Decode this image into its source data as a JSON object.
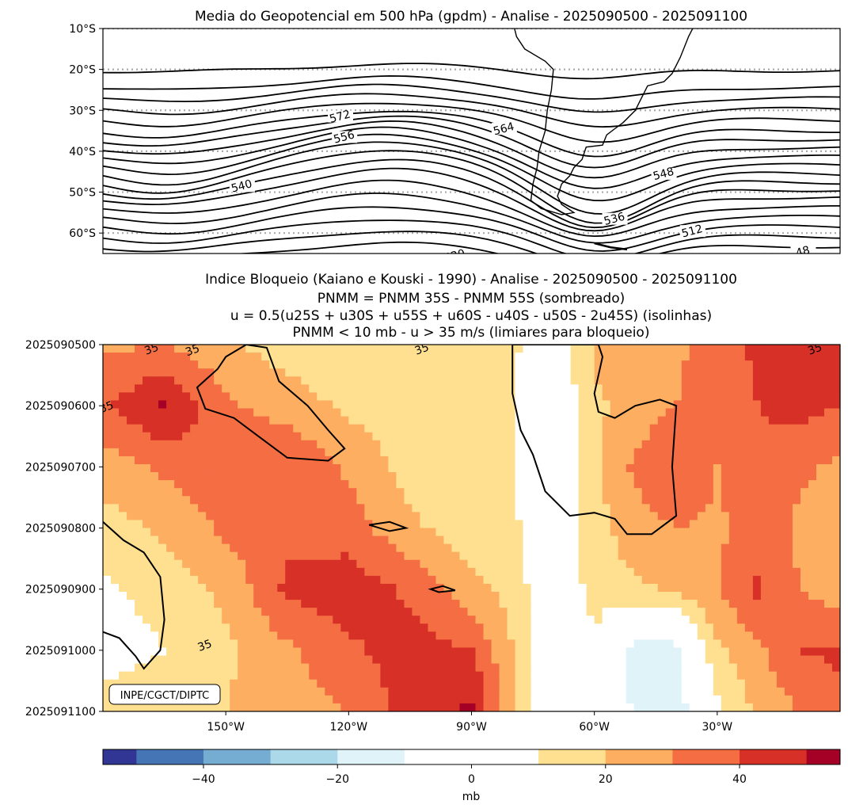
{
  "chart_data": [
    {
      "type": "contour",
      "title": "Media do Geopotencial em 500 hPa (gpdm) - Analise - 2025090500 - 2025091100",
      "xlim": [
        -180,
        0
      ],
      "ylim": [
        -65,
        -10
      ],
      "y_ticks": [
        -10,
        -20,
        -30,
        -40,
        -50,
        -60
      ],
      "y_tick_labels": [
        "10°S",
        "20°S",
        "30°S",
        "40°S",
        "50°S",
        "60°S"
      ],
      "gridlines": "dotted latitude lines every 10°",
      "contour_interval": 4,
      "contour_labels": [
        {
          "text": "572",
          "lon": -122,
          "lat": -32
        },
        {
          "text": "564",
          "lon": -82,
          "lat": -35
        },
        {
          "text": "556",
          "lon": -121,
          "lat": -37
        },
        {
          "text": "540",
          "lon": -146,
          "lat": -49
        },
        {
          "text": "548",
          "lon": -43,
          "lat": -46
        },
        {
          "text": "536",
          "lon": -55,
          "lat": -57
        },
        {
          "text": "512",
          "lon": -36,
          "lat": -60
        },
        {
          "text": "520",
          "lon": -94,
          "lat": -66
        },
        {
          "text": "48",
          "lon": -9,
          "lat": -65
        }
      ],
      "contour_levels": [
        {
          "value": 588,
          "lat": -20.0,
          "amp": 1.2
        },
        {
          "value": 584,
          "lat": -24.0,
          "amp": 2.0
        },
        {
          "value": 580,
          "lat": -26.5,
          "amp": 2.5
        },
        {
          "value": 576,
          "lat": -29.0,
          "amp": 3.0
        },
        {
          "value": 572,
          "lat": -31.5,
          "amp": 3.5
        },
        {
          "value": 568,
          "lat": -34.0,
          "amp": 4.0
        },
        {
          "value": 564,
          "lat": -36.0,
          "amp": 4.5
        },
        {
          "value": 560,
          "lat": -38.0,
          "amp": 5.0
        },
        {
          "value": 556,
          "lat": -40.0,
          "amp": 5.5
        },
        {
          "value": 552,
          "lat": -42.0,
          "amp": 6.0
        },
        {
          "value": 548,
          "lat": -44.0,
          "amp": 6.5
        },
        {
          "value": 544,
          "lat": -46.0,
          "amp": 6.5
        },
        {
          "value": 540,
          "lat": -48.0,
          "amp": 6.0
        },
        {
          "value": 536,
          "lat": -50.0,
          "amp": 5.5
        },
        {
          "value": 532,
          "lat": -52.5,
          "amp": 5.0
        },
        {
          "value": 528,
          "lat": -55.0,
          "amp": 4.5
        },
        {
          "value": 524,
          "lat": -57.5,
          "amp": 4.0
        },
        {
          "value": 520,
          "lat": -60.0,
          "amp": 3.5
        },
        {
          "value": 516,
          "lat": -62.5,
          "amp": 3.0
        },
        {
          "value": 512,
          "lat": -65.0,
          "amp": 2.5
        }
      ]
    },
    {
      "type": "heatmap",
      "title": "Indice Bloqueio (Kaiano e Kouski - 1990) - Analise - 2025090500 - 2025091100",
      "title_lines": [
        "Indice Bloqueio (Kaiano e Kouski - 1990) - Analise - 2025090500 - 2025091100",
        "PNMM = PNMM 35S - PNMM 55S (sombreado)",
        "u = 0.5(u25S + u30S + u55S + u60S - u40S - u50S - 2u45S) (isolinhas)",
        "PNMM < 10 mb - u > 35 m/s (limiares para bloqueio)"
      ],
      "xlim": [
        -180,
        0
      ],
      "x_ticks": [
        -150,
        -120,
        -90,
        -60,
        -30
      ],
      "x_tick_labels": [
        "150°W",
        "120°W",
        "90°W",
        "60°W",
        "30°W"
      ],
      "y_ticks": [
        "2025090500",
        "2025090600",
        "2025090700",
        "2025090800",
        "2025090900",
        "2025091000",
        "2025091100"
      ],
      "isoline_value": 35,
      "isoline_labels": [
        {
          "text": "35",
          "lon": -169,
          "day": 0.05
        },
        {
          "text": "35",
          "lon": -103,
          "day": 0.05
        },
        {
          "text": "35",
          "lon": -159,
          "day": 0.07
        },
        {
          "text": "35",
          "lon": -180,
          "day": 1.0
        },
        {
          "text": "35",
          "lon": -7,
          "day": 0.05
        },
        {
          "text": "35",
          "lon": -156,
          "day": 4.9
        }
      ],
      "annotation": "INPE/CGCT/DIPTC",
      "note": "values in mb; shading = PNMM 35S - PNMM 55S",
      "shading_grid": {
        "lons": [
          -180,
          -165,
          -150,
          -135,
          -120,
          -105,
          -90,
          -80,
          -70,
          -60,
          -50,
          -40,
          -30,
          -20,
          -10,
          0
        ],
        "days": [
          0,
          1,
          2,
          3,
          4,
          5,
          6
        ],
        "values": [
          [
            28,
            30,
            22,
            15,
            12,
            14,
            13,
            12,
            0,
            22,
            25,
            28,
            35,
            42,
            48,
            45
          ],
          [
            38,
            52,
            32,
            25,
            18,
            13,
            12,
            11,
            0,
            18,
            24,
            30,
            35,
            40,
            44,
            40
          ],
          [
            25,
            32,
            36,
            40,
            28,
            16,
            14,
            11,
            0,
            18,
            32,
            40,
            30,
            38,
            32,
            28
          ],
          [
            15,
            22,
            32,
            38,
            35,
            22,
            14,
            12,
            0,
            16,
            26,
            30,
            28,
            35,
            28,
            24
          ],
          [
            8,
            14,
            22,
            42,
            46,
            38,
            24,
            16,
            0,
            14,
            18,
            22,
            30,
            42,
            30,
            24
          ],
          [
            4,
            10,
            18,
            28,
            38,
            45,
            40,
            20,
            0,
            8,
            -16,
            -14,
            18,
            28,
            40,
            42
          ],
          [
            15,
            18,
            20,
            25,
            30,
            45,
            52,
            22,
            0,
            6,
            -12,
            -16,
            8,
            22,
            30,
            36
          ]
        ]
      },
      "colorbar": {
        "label": "mb",
        "range": [
          -55,
          55
        ],
        "bounds": [
          -55,
          -50,
          -40,
          -30,
          -20,
          -10,
          10,
          20,
          30,
          40,
          50,
          55
        ],
        "colors": [
          "#313695",
          "#4575b4",
          "#74add1",
          "#abd9e9",
          "#e0f3f8",
          "#ffffff",
          "#fee090",
          "#fdae61",
          "#f46d43",
          "#d73027",
          "#a50026"
        ],
        "ticks": [
          -40,
          -20,
          0,
          20,
          40
        ],
        "tick_labels": [
          "−40",
          "−20",
          "0",
          "20",
          "40"
        ]
      }
    }
  ]
}
